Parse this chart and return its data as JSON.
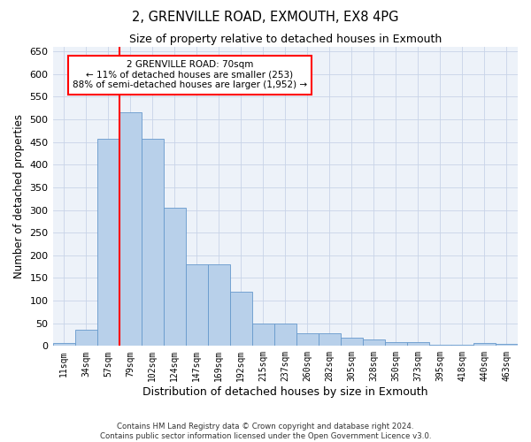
{
  "title": "2, GRENVILLE ROAD, EXMOUTH, EX8 4PG",
  "subtitle": "Size of property relative to detached houses in Exmouth",
  "xlabel": "Distribution of detached houses by size in Exmouth",
  "ylabel": "Number of detached properties",
  "bar_labels": [
    "11sqm",
    "34sqm",
    "57sqm",
    "79sqm",
    "102sqm",
    "124sqm",
    "147sqm",
    "169sqm",
    "192sqm",
    "215sqm",
    "237sqm",
    "260sqm",
    "282sqm",
    "305sqm",
    "328sqm",
    "350sqm",
    "373sqm",
    "395sqm",
    "418sqm",
    "440sqm",
    "463sqm"
  ],
  "bar_values": [
    7,
    35,
    457,
    515,
    457,
    305,
    180,
    180,
    120,
    50,
    50,
    27,
    27,
    18,
    14,
    9,
    9,
    2,
    2,
    7,
    4
  ],
  "bar_color": "#b8d0ea",
  "bar_edge_color": "#6699cc",
  "annotation_text": "2 GRENVILLE ROAD: 70sqm\n← 11% of detached houses are smaller (253)\n88% of semi-detached houses are larger (1,952) →",
  "ylim": [
    0,
    660
  ],
  "yticks": [
    0,
    50,
    100,
    150,
    200,
    250,
    300,
    350,
    400,
    450,
    500,
    550,
    600,
    650
  ],
  "grid_color": "#c8d4e8",
  "background_color": "#edf2f9",
  "footer_line1": "Contains HM Land Registry data © Crown copyright and database right 2024.",
  "footer_line2": "Contains public sector information licensed under the Open Government Licence v3.0."
}
